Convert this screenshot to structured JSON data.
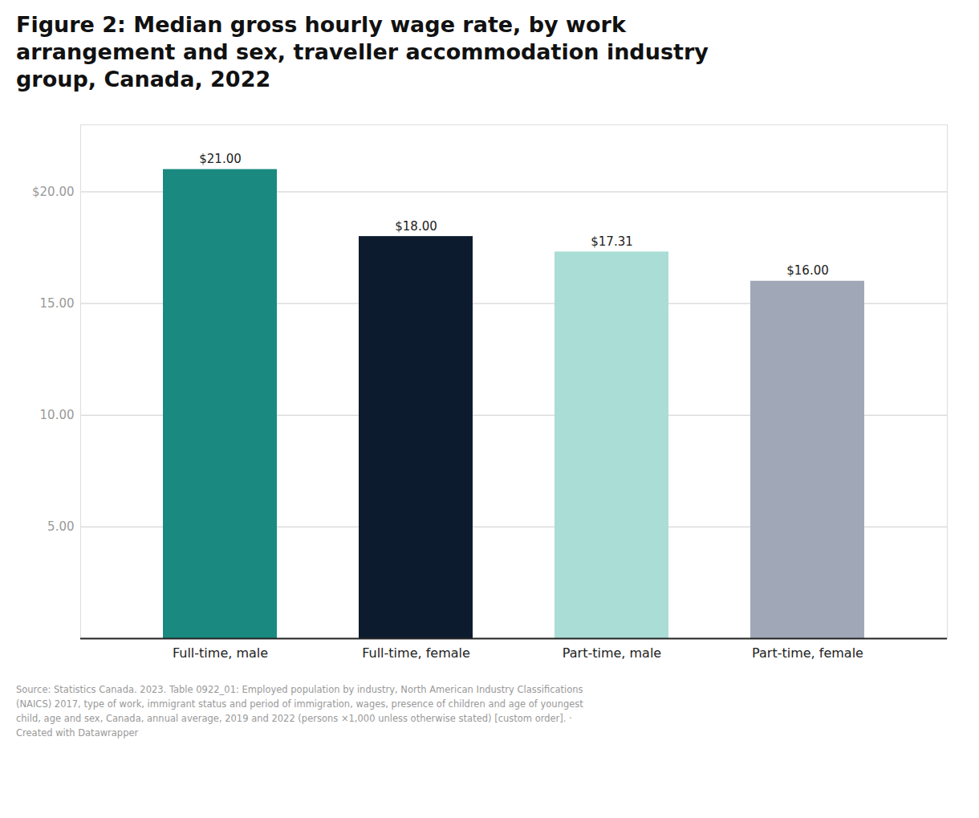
{
  "chart_data": {
    "type": "bar",
    "title": "Figure 2: Median gross hourly wage rate, by work\narrangement and sex, traveller accommodation industry\ngroup, Canada, 2022",
    "caption": "Source: Statistics Canada. 2023. Table 0922_01: Employed population by industry, North American Industry Classifications\n(NAICS) 2017, type of work, immigrant status and period of immigration, wages, presence of children and age of youngest\nchild, age and sex, Canada, annual average, 2019 and 2022 (persons ×1,000 unless otherwise stated) [custom order]. ·\nCreated with Datawrapper",
    "categories": [
      "Full-time, male",
      "Full-time, female",
      "Part-time, male",
      "Part-time, female"
    ],
    "values": [
      21.0,
      18.0,
      17.31,
      16.0
    ],
    "value_labels": [
      "$21.00",
      "$18.00",
      "$17.31",
      "$16.00"
    ],
    "colors": [
      "#1a8a80",
      "#0d1b2e",
      "#aaddd6",
      "#a0a8b8"
    ],
    "ylim": [
      0,
      23
    ],
    "yticks": [
      {
        "value": 5.0,
        "label": "5.00"
      },
      {
        "value": 10.0,
        "label": "10.00"
      },
      {
        "value": 15.0,
        "label": "15.00"
      },
      {
        "value": 20.0,
        "label": "$20.00"
      }
    ],
    "grid": true,
    "data_labels": true
  }
}
